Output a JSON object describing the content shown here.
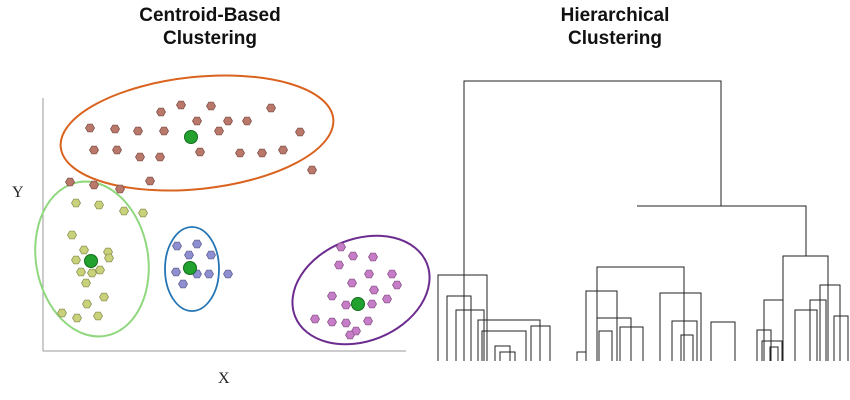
{
  "left_panel": {
    "title_lines": [
      "Centroid-Based",
      "Clustering"
    ],
    "x_axis_label": "X",
    "y_axis_label": "Y",
    "clusters": [
      {
        "name": "brown-cluster",
        "point_color": "#b9786a",
        "ellipse_color": "#d9631f",
        "centroid": [
          191,
          137
        ],
        "points": [
          [
            90,
            128
          ],
          [
            115,
            129
          ],
          [
            138,
            131
          ],
          [
            161,
            112
          ],
          [
            181,
            105
          ],
          [
            211,
            106
          ],
          [
            197,
            121
          ],
          [
            228,
            121
          ],
          [
            247,
            121
          ],
          [
            164,
            131
          ],
          [
            219,
            131
          ],
          [
            271,
            108
          ],
          [
            300,
            132
          ],
          [
            94,
            150
          ],
          [
            117,
            150
          ],
          [
            140,
            157
          ],
          [
            160,
            157
          ],
          [
            200,
            152
          ],
          [
            240,
            153
          ],
          [
            262,
            153
          ],
          [
            283,
            150
          ],
          [
            312,
            170
          ],
          [
            70,
            182
          ],
          [
            94,
            185
          ],
          [
            120,
            189
          ],
          [
            150,
            181
          ]
        ]
      },
      {
        "name": "green-cluster",
        "point_color": "#c9d27a",
        "ellipse_color": "#8fd87e",
        "centroid": [
          91,
          261
        ],
        "points": [
          [
            76,
            203
          ],
          [
            99,
            205
          ],
          [
            124,
            211
          ],
          [
            143,
            213
          ],
          [
            72,
            235
          ],
          [
            84,
            250
          ],
          [
            108,
            252
          ],
          [
            76,
            260
          ],
          [
            81,
            272
          ],
          [
            92,
            273
          ],
          [
            100,
            270
          ],
          [
            109,
            258
          ],
          [
            86,
            283
          ],
          [
            104,
            297
          ],
          [
            87,
            304
          ],
          [
            62,
            313
          ],
          [
            98,
            316
          ],
          [
            77,
            318
          ]
        ]
      },
      {
        "name": "blue-cluster",
        "point_color": "#8d8fd0",
        "ellipse_color": "#2575b4",
        "centroid": [
          190,
          268
        ],
        "points": [
          [
            177,
            246
          ],
          [
            197,
            244
          ],
          [
            211,
            255
          ],
          [
            189,
            255
          ],
          [
            176,
            272
          ],
          [
            197,
            274
          ],
          [
            209,
            274
          ],
          [
            228,
            274
          ],
          [
            183,
            284
          ]
        ]
      },
      {
        "name": "purple-cluster",
        "point_color": "#c67cc6",
        "ellipse_color": "#6c2b8e",
        "centroid": [
          358,
          304
        ],
        "points": [
          [
            341,
            247
          ],
          [
            353,
            256
          ],
          [
            373,
            257
          ],
          [
            339,
            265
          ],
          [
            369,
            274
          ],
          [
            392,
            274
          ],
          [
            352,
            283
          ],
          [
            374,
            290
          ],
          [
            397,
            285
          ],
          [
            332,
            296
          ],
          [
            346,
            305
          ],
          [
            372,
            304
          ],
          [
            387,
            299
          ],
          [
            315,
            319
          ],
          [
            332,
            322
          ],
          [
            346,
            323
          ],
          [
            368,
            321
          ],
          [
            356,
            331
          ],
          [
            350,
            335
          ]
        ]
      }
    ]
  },
  "right_panel": {
    "title_lines": [
      "Hierarchical",
      "Clustering"
    ]
  }
}
